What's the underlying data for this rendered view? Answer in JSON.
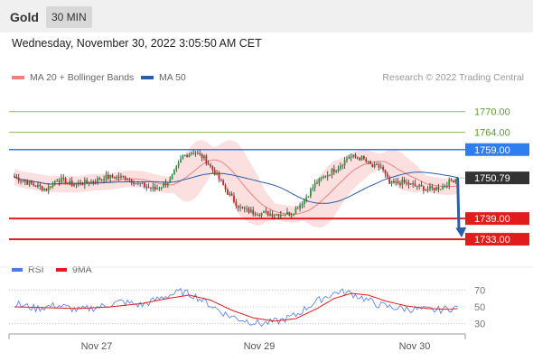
{
  "header": {
    "asset": "Gold",
    "timeframe": "30 MIN"
  },
  "datetime": "Wednesday, November 30, 2022 3:05:50 AM CET",
  "legend": {
    "ma20": {
      "label": "MA 20 + Bollinger Bands",
      "color": "#f08080"
    },
    "ma50": {
      "label": "MA 50",
      "color": "#2a5fa8"
    },
    "rsi": {
      "label": "RSI",
      "color": "#4d7be8"
    },
    "rsi_ma": {
      "label": "9MA",
      "color": "#e21b1b"
    }
  },
  "credit": "Research © 2022 Trading Central",
  "chart_data": {
    "type": "candlestick",
    "title": "",
    "x_ticks": [
      "Nov 27",
      "Nov 29",
      "Nov 30"
    ],
    "y_range": [
      1727,
      1777
    ],
    "levels": [
      {
        "value": 1770.0,
        "label": "1770.00",
        "kind": "resistance",
        "color": "#8cc152"
      },
      {
        "value": 1764.0,
        "label": "1764.00",
        "kind": "resistance",
        "color": "#8cc152"
      },
      {
        "value": 1759.0,
        "label": "1759.00",
        "kind": "pivot",
        "color": "#2e7ef0"
      },
      {
        "value": 1739.0,
        "label": "1739.00",
        "kind": "support",
        "color": "#e21b1b"
      },
      {
        "value": 1733.0,
        "label": "1733.00",
        "kind": "support",
        "color": "#e21b1b"
      }
    ],
    "last_price": {
      "value": 1750.79,
      "label": "1750.79"
    },
    "forecast_arrow": {
      "from": 1750.79,
      "to": 1733.0
    },
    "price_anchors": [
      [
        0,
        1751
      ],
      [
        8,
        1749
      ],
      [
        15,
        1747.5
      ],
      [
        20,
        1750.5
      ],
      [
        27,
        1749
      ],
      [
        35,
        1749.5
      ],
      [
        43,
        1751
      ],
      [
        52,
        1751
      ],
      [
        58,
        1749
      ],
      [
        66,
        1747.5
      ],
      [
        73,
        1750
      ],
      [
        79,
        1757
      ],
      [
        84,
        1758.5
      ],
      [
        89,
        1756.5
      ],
      [
        95,
        1751.5
      ],
      [
        100,
        1746.5
      ],
      [
        106,
        1742
      ],
      [
        112,
        1740.8
      ],
      [
        122,
        1740.3
      ],
      [
        130,
        1740.5
      ],
      [
        136,
        1744.5
      ],
      [
        141,
        1749
      ],
      [
        146,
        1751.5
      ],
      [
        152,
        1754
      ],
      [
        157,
        1757
      ],
      [
        163,
        1756.5
      ],
      [
        168,
        1754
      ],
      [
        172,
        1754
      ],
      [
        176,
        1749
      ],
      [
        182,
        1749.5
      ],
      [
        188,
        1748.5
      ],
      [
        194,
        1747.5
      ],
      [
        200,
        1748
      ],
      [
        205,
        1750
      ],
      [
        208,
        1750.79
      ]
    ],
    "rsi": {
      "levels": [
        70,
        50,
        30
      ],
      "anchors": [
        [
          0,
          54
        ],
        [
          10,
          48
        ],
        [
          20,
          52
        ],
        [
          30,
          46
        ],
        [
          40,
          50
        ],
        [
          50,
          56
        ],
        [
          60,
          52
        ],
        [
          70,
          62
        ],
        [
          78,
          68
        ],
        [
          84,
          64
        ],
        [
          92,
          52
        ],
        [
          100,
          40
        ],
        [
          108,
          34
        ],
        [
          116,
          30
        ],
        [
          124,
          33
        ],
        [
          132,
          40
        ],
        [
          140,
          54
        ],
        [
          146,
          62
        ],
        [
          152,
          68
        ],
        [
          158,
          66
        ],
        [
          164,
          60
        ],
        [
          170,
          53
        ],
        [
          176,
          50
        ],
        [
          182,
          48
        ],
        [
          190,
          47
        ],
        [
          198,
          46
        ],
        [
          204,
          48
        ],
        [
          208,
          49
        ]
      ],
      "ma_anchors": [
        [
          0,
          50
        ],
        [
          15,
          49
        ],
        [
          30,
          48
        ],
        [
          45,
          50
        ],
        [
          60,
          54
        ],
        [
          72,
          60
        ],
        [
          82,
          64
        ],
        [
          92,
          58
        ],
        [
          102,
          46
        ],
        [
          112,
          37
        ],
        [
          122,
          33
        ],
        [
          132,
          36
        ],
        [
          142,
          48
        ],
        [
          150,
          60
        ],
        [
          158,
          66
        ],
        [
          166,
          64
        ],
        [
          174,
          57
        ],
        [
          184,
          51
        ],
        [
          194,
          48
        ],
        [
          204,
          47
        ],
        [
          208,
          48
        ]
      ]
    }
  }
}
